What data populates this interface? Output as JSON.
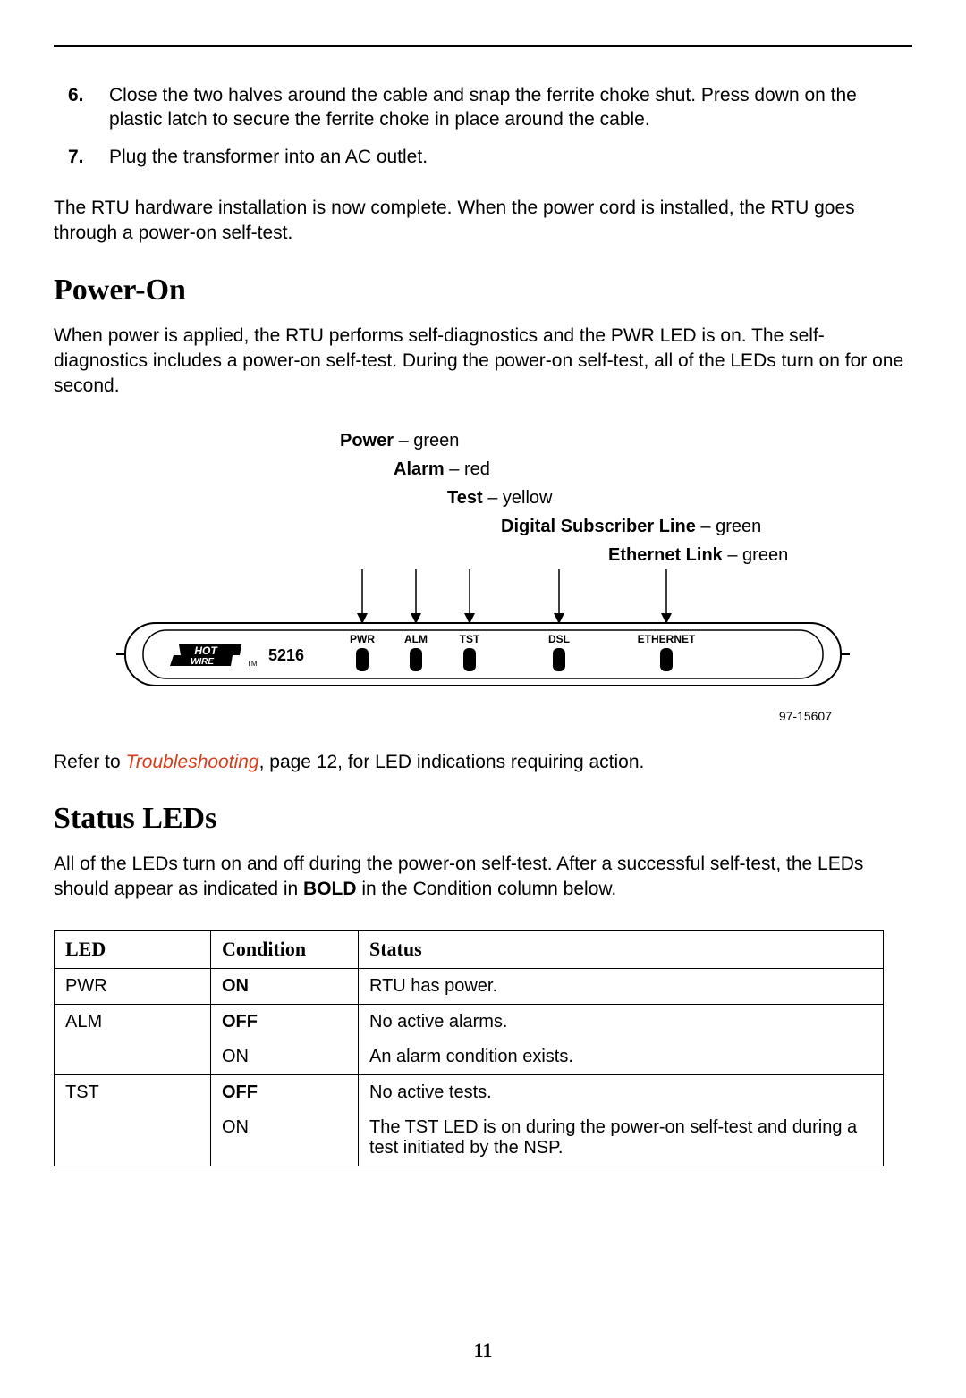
{
  "page_number": "11",
  "ordered_list": [
    {
      "num": "6.",
      "text": "Close the two halves around the cable and snap the ferrite choke shut. Press down on the plastic latch to secure the ferrite choke in place around the cable."
    },
    {
      "num": "7.",
      "text": "Plug the transformer into an AC outlet."
    }
  ],
  "para_install_complete": "The RTU hardware installation is now complete. When the power cord is installed, the RTU goes through a power-on self-test.",
  "heading_power_on": "Power-On",
  "para_power_on": "When power is applied, the RTU performs self-diagnostics and the PWR LED is on. The self-diagnostics includes a power-on self-test. During the power-on self-test, all of the LEDs turn on for one second.",
  "led_callouts": {
    "power_bold": "Power",
    "power_rest": " – green",
    "alarm_bold": "Alarm",
    "alarm_rest": " – red",
    "test_bold": "Test",
    "test_rest": " – yellow",
    "dsl_bold": "Digital Subscriber Line",
    "dsl_rest": " – green",
    "eth_bold": "Ethernet Link",
    "eth_rest": " – green"
  },
  "device": {
    "model": "5216",
    "logo_top": "HOT",
    "logo_bottom": "WIRE",
    "tm": "TM",
    "labels": {
      "pwr": "PWR",
      "alm": "ALM",
      "tst": "TST",
      "dsl": "DSL",
      "eth": "ETHERNET"
    },
    "colors": {
      "panel_stroke": "#000000",
      "led_fill": "#000000",
      "arrow_stroke": "#000000",
      "background": "#ffffff"
    }
  },
  "figure_number": "97-15607",
  "refer_prefix": "Refer to ",
  "refer_link": "Troubleshooting",
  "refer_suffix": ", page 12, for LED indications requiring action.",
  "heading_status_leds": "Status LEDs",
  "para_status_pre": "All of the LEDs turn on and off during the power-on self-test. After a successful self-test, the LEDs should appear as indicated in ",
  "para_status_bold": "BOLD",
  "para_status_post": " in the Condition column below.",
  "table": {
    "headers": {
      "led": "LED",
      "condition": "Condition",
      "status": "Status"
    },
    "rows": [
      {
        "led": "PWR",
        "cond": "ON",
        "cond_bold": true,
        "status": "RTU has power.",
        "group_first": true,
        "group_last": true
      },
      {
        "led": "ALM",
        "cond": "OFF",
        "cond_bold": true,
        "status": "No active alarms.",
        "group_first": true,
        "group_last": false
      },
      {
        "led": "",
        "cond": "ON",
        "cond_bold": false,
        "status": "An alarm condition exists.",
        "group_first": false,
        "group_last": true
      },
      {
        "led": "TST",
        "cond": "OFF",
        "cond_bold": true,
        "status": "No active tests.",
        "group_first": true,
        "group_last": false
      },
      {
        "led": "",
        "cond": "ON",
        "cond_bold": false,
        "status": "The TST LED is on during the power-on self-test and during a test initiated by the NSP.",
        "group_first": false,
        "group_last": true
      }
    ]
  }
}
